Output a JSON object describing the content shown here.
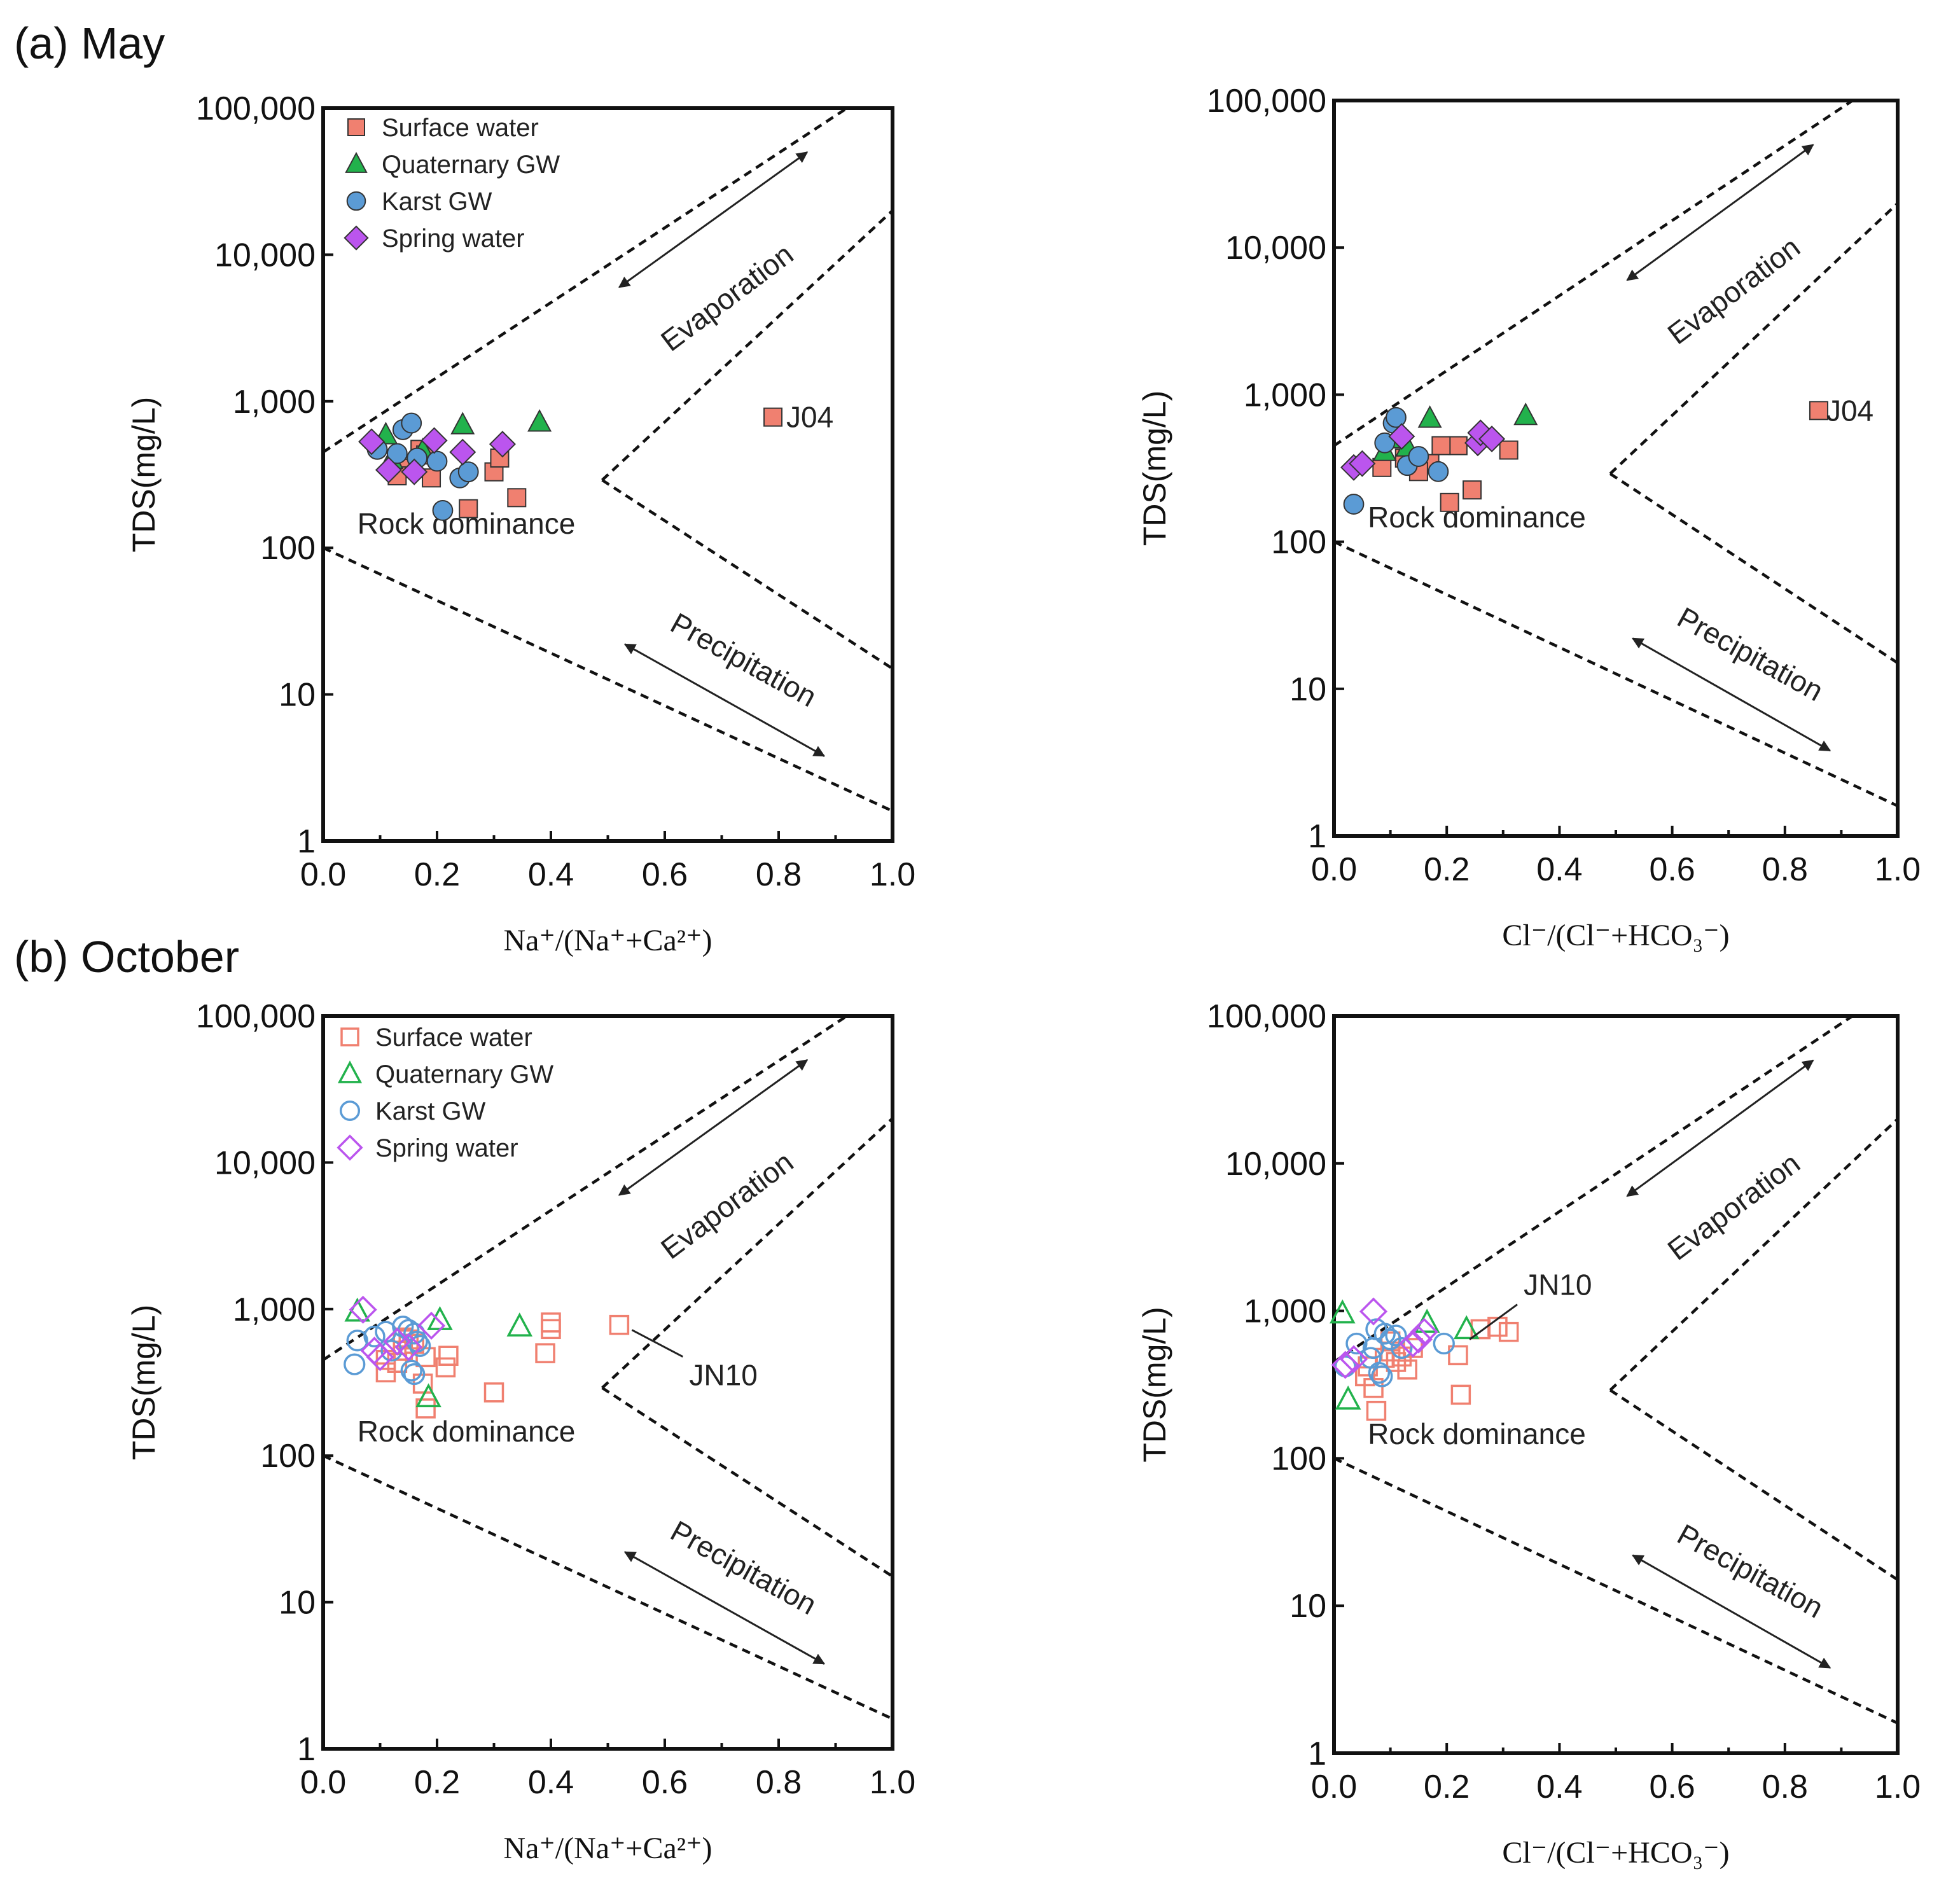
{
  "panels": {
    "a": "(a) May",
    "b": "(b) October"
  },
  "legend": [
    "Surface water",
    "Quaternary GW",
    "Karst GW",
    "Spring water"
  ],
  "labels": {
    "evaporation": "Evaporation",
    "precipitation": "Precipitation",
    "rock": "Rock dominance",
    "ylabel": "TDS(mg/L)",
    "xlabel_na": "Na⁺/(Na⁺+Ca²⁺)",
    "xlabel_cl": "Cl⁻/(Cl⁻+HCO₃⁻)"
  },
  "colors": {
    "surface": "#f08070",
    "quaternary": "#22b24c",
    "karst": "#5b9bd5",
    "spring": "#bb55ee"
  },
  "chart_data": [
    {
      "type": "scatter",
      "id": "may_na",
      "title": "(a) May",
      "xlabel": "Na⁺/(Na⁺+Ca²⁺)",
      "ylabel": "TDS(mg/L)",
      "xlim": [
        0,
        1.0
      ],
      "ylim": [
        1,
        100000
      ],
      "yscale": "log",
      "xticks": [
        "0.0",
        "0.2",
        "0.4",
        "0.6",
        "0.8",
        "1.0"
      ],
      "yticks": [
        "1",
        "10",
        "100",
        "1,000",
        "10,000",
        "100,000"
      ],
      "filled": true,
      "show_legend": true,
      "point_label": {
        "text": "J04",
        "x": 0.8,
        "y": 780,
        "style": "right"
      },
      "series": [
        {
          "name": "Surface water",
          "points": [
            [
              0.79,
              780
            ],
            [
              0.34,
              220
            ],
            [
              0.255,
              185
            ],
            [
              0.3,
              330
            ],
            [
              0.31,
              410
            ],
            [
              0.17,
              470
            ],
            [
              0.18,
              430
            ],
            [
              0.15,
              350
            ],
            [
              0.19,
              300
            ],
            [
              0.13,
              310
            ]
          ]
        },
        {
          "name": "Quaternary GW",
          "points": [
            [
              0.11,
              590
            ],
            [
              0.245,
              690
            ],
            [
              0.38,
              720
            ],
            [
              0.12,
              400
            ],
            [
              0.175,
              460
            ]
          ]
        },
        {
          "name": "Karst GW",
          "points": [
            [
              0.095,
              470
            ],
            [
              0.14,
              640
            ],
            [
              0.155,
              710
            ],
            [
              0.2,
              390
            ],
            [
              0.24,
              300
            ],
            [
              0.255,
              330
            ],
            [
              0.21,
              180
            ],
            [
              0.13,
              440
            ],
            [
              0.165,
              410
            ]
          ]
        },
        {
          "name": "Spring water",
          "points": [
            [
              0.085,
              530
            ],
            [
              0.195,
              540
            ],
            [
              0.245,
              450
            ],
            [
              0.315,
              510
            ],
            [
              0.115,
              340
            ],
            [
              0.16,
              330
            ]
          ]
        }
      ]
    },
    {
      "type": "scatter",
      "id": "may_cl",
      "title": "",
      "xlabel": "Cl⁻/(Cl⁻+HCO₃⁻)",
      "ylabel": "TDS(mg/L)",
      "xlim": [
        0,
        1.0
      ],
      "ylim": [
        1,
        100000
      ],
      "yscale": "log",
      "xticks": [
        "0.0",
        "0.2",
        "0.4",
        "0.6",
        "0.8",
        "1.0"
      ],
      "yticks": [
        "1",
        "10",
        "100",
        "1,000",
        "10,000",
        "100,000"
      ],
      "filled": true,
      "show_legend": false,
      "point_label": {
        "text": "J04",
        "x": 0.86,
        "y": 780,
        "style": "right"
      },
      "series": [
        {
          "name": "Surface water",
          "points": [
            [
              0.86,
              780
            ],
            [
              0.31,
              420
            ],
            [
              0.245,
              225
            ],
            [
              0.205,
              185
            ],
            [
              0.22,
              450
            ],
            [
              0.19,
              450
            ],
            [
              0.17,
              340
            ],
            [
              0.125,
              370
            ],
            [
              0.15,
              300
            ],
            [
              0.085,
              320
            ]
          ]
        },
        {
          "name": "Quaternary GW",
          "points": [
            [
              0.34,
              720
            ],
            [
              0.17,
              690
            ],
            [
              0.09,
              410
            ],
            [
              0.115,
              500
            ],
            [
              0.13,
              440
            ]
          ]
        },
        {
          "name": "Karst GW",
          "points": [
            [
              0.105,
              640
            ],
            [
              0.11,
              700
            ],
            [
              0.09,
              470
            ],
            [
              0.13,
              330
            ],
            [
              0.15,
              380
            ],
            [
              0.185,
              300
            ],
            [
              0.035,
              180
            ]
          ]
        },
        {
          "name": "Spring water",
          "points": [
            [
              0.035,
              320
            ],
            [
              0.05,
              340
            ],
            [
              0.12,
              520
            ],
            [
              0.255,
              470
            ],
            [
              0.26,
              550
            ],
            [
              0.28,
              500
            ]
          ]
        }
      ]
    },
    {
      "type": "scatter",
      "id": "oct_na",
      "title": "(b) October",
      "xlabel": "Na⁺/(Na⁺+Ca²⁺)",
      "ylabel": "TDS(mg/L)",
      "xlim": [
        0,
        1.0
      ],
      "ylim": [
        1,
        100000
      ],
      "yscale": "log",
      "xticks": [
        "0.0",
        "0.2",
        "0.4",
        "0.6",
        "0.8",
        "1.0"
      ],
      "yticks": [
        "1",
        "10",
        "100",
        "1,000",
        "10,000",
        "100,000"
      ],
      "filled": false,
      "show_legend": true,
      "point_label": {
        "text": "JN10",
        "x": 0.52,
        "y": 780,
        "style": "leader"
      },
      "series": [
        {
          "name": "Surface water",
          "points": [
            [
              0.52,
              780
            ],
            [
              0.4,
              810
            ],
            [
              0.4,
              730
            ],
            [
              0.39,
              500
            ],
            [
              0.3,
              270
            ],
            [
              0.22,
              480
            ],
            [
              0.215,
              400
            ],
            [
              0.18,
              210
            ],
            [
              0.175,
              310
            ],
            [
              0.16,
              580
            ],
            [
              0.14,
              640
            ],
            [
              0.14,
              520
            ],
            [
              0.11,
              450
            ],
            [
              0.11,
              370
            ],
            [
              0.13,
              430
            ],
            [
              0.18,
              470
            ],
            [
              0.15,
              620
            ]
          ]
        },
        {
          "name": "Quaternary GW",
          "points": [
            [
              0.06,
              960
            ],
            [
              0.205,
              840
            ],
            [
              0.345,
              760
            ],
            [
              0.185,
              250
            ]
          ]
        },
        {
          "name": "Karst GW",
          "points": [
            [
              0.055,
              420
            ],
            [
              0.06,
              610
            ],
            [
              0.09,
              650
            ],
            [
              0.11,
              700
            ],
            [
              0.14,
              760
            ],
            [
              0.15,
              720
            ],
            [
              0.16,
              680
            ],
            [
              0.165,
              600
            ],
            [
              0.17,
              560
            ],
            [
              0.155,
              380
            ],
            [
              0.16,
              360
            ],
            [
              0.12,
              520
            ]
          ]
        },
        {
          "name": "Spring water",
          "points": [
            [
              0.07,
              990
            ],
            [
              0.19,
              770
            ],
            [
              0.1,
              470
            ],
            [
              0.09,
              520
            ],
            [
              0.15,
              550
            ],
            [
              0.13,
              600
            ]
          ]
        }
      ]
    },
    {
      "type": "scatter",
      "id": "oct_cl",
      "title": "",
      "xlabel": "Cl⁻/(Cl⁻+HCO₃⁻)",
      "ylabel": "TDS(mg/L)",
      "xlim": [
        0,
        1.0
      ],
      "ylim": [
        1,
        100000
      ],
      "yscale": "log",
      "xticks": [
        "0.0",
        "0.2",
        "0.4",
        "0.6",
        "0.8",
        "1.0"
      ],
      "yticks": [
        "1",
        "10",
        "100",
        "1,000",
        "10,000",
        "100,000"
      ],
      "filled": false,
      "show_legend": false,
      "point_label": {
        "text": "JN10",
        "x": 0.28,
        "y": 820,
        "style": "leader_up"
      },
      "series": [
        {
          "name": "Surface water",
          "points": [
            [
              0.31,
              720
            ],
            [
              0.29,
              780
            ],
            [
              0.26,
              750
            ],
            [
              0.22,
              500
            ],
            [
              0.225,
              270
            ],
            [
              0.075,
              210
            ],
            [
              0.07,
              300
            ],
            [
              0.055,
              360
            ],
            [
              0.06,
              420
            ],
            [
              0.09,
              480
            ],
            [
              0.1,
              530
            ],
            [
              0.11,
              450
            ],
            [
              0.12,
              490
            ],
            [
              0.13,
              400
            ],
            [
              0.1,
              620
            ],
            [
              0.14,
              560
            ]
          ]
        },
        {
          "name": "Quaternary GW",
          "points": [
            [
              0.015,
              960
            ],
            [
              0.165,
              830
            ],
            [
              0.235,
              750
            ],
            [
              0.025,
              250
            ]
          ]
        },
        {
          "name": "Karst GW",
          "points": [
            [
              0.02,
              420
            ],
            [
              0.04,
              600
            ],
            [
              0.07,
              560
            ],
            [
              0.075,
              750
            ],
            [
              0.09,
              700
            ],
            [
              0.1,
              640
            ],
            [
              0.11,
              680
            ],
            [
              0.12,
              560
            ],
            [
              0.195,
              600
            ],
            [
              0.08,
              380
            ],
            [
              0.085,
              360
            ],
            [
              0.065,
              480
            ]
          ]
        },
        {
          "name": "Spring water",
          "points": [
            [
              0.07,
              990
            ],
            [
              0.02,
              430
            ],
            [
              0.035,
              470
            ],
            [
              0.15,
              640
            ],
            [
              0.16,
              720
            ],
            [
              0.14,
              600
            ]
          ]
        }
      ]
    }
  ]
}
